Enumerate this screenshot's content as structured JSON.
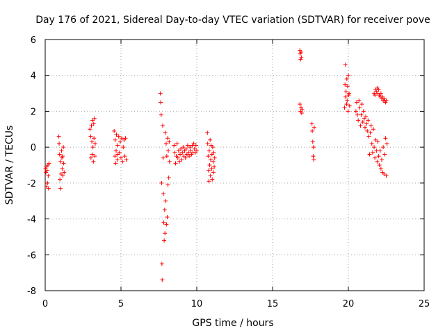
{
  "chart_data": {
    "type": "scatter",
    "title": "Day 176 of 2021, Sidereal Day-to-day VTEC variation (SDTVAR) for receiver pove",
    "xlabel": "GPS time / hours",
    "ylabel": "SDTVAR / TECUs",
    "xlim": [
      0,
      25
    ],
    "ylim": [
      -8,
      6
    ],
    "xticks": [
      0,
      5,
      10,
      15,
      20,
      25
    ],
    "yticks": [
      -8,
      -6,
      -4,
      -2,
      0,
      2,
      4,
      6
    ],
    "xtick_labels": [
      "0",
      "5",
      "10",
      "15",
      "20",
      "25"
    ],
    "ytick_labels": [
      "-8",
      "-6",
      "-4",
      "-2",
      "0",
      "2",
      "4",
      "6"
    ],
    "grid": true,
    "marker": "plus",
    "color": "#ff0000",
    "series": [
      {
        "name": "SDTVAR",
        "points": [
          [
            0.02,
            -1.2
          ],
          [
            0.05,
            -1.4
          ],
          [
            0.08,
            -1.1
          ],
          [
            0.1,
            -2.2
          ],
          [
            0.12,
            -1.3
          ],
          [
            0.15,
            -2.0
          ],
          [
            0.18,
            -1.0
          ],
          [
            0.2,
            -1.6
          ],
          [
            0.22,
            -2.3
          ],
          [
            0.25,
            -0.9
          ],
          [
            0.9,
            0.6
          ],
          [
            0.92,
            0.2
          ],
          [
            0.95,
            -0.4
          ],
          [
            0.97,
            -1.8
          ],
          [
            1.0,
            -2.3
          ],
          [
            1.02,
            -0.8
          ],
          [
            1.05,
            -1.5
          ],
          [
            1.08,
            -0.2
          ],
          [
            1.1,
            -0.6
          ],
          [
            1.12,
            -1.2
          ],
          [
            1.15,
            -0.5
          ],
          [
            1.17,
            -1.6
          ],
          [
            1.2,
            0.0
          ],
          [
            1.22,
            -0.9
          ],
          [
            1.25,
            -1.4
          ],
          [
            2.95,
            1.0
          ],
          [
            3.0,
            0.6
          ],
          [
            3.02,
            -0.6
          ],
          [
            3.05,
            1.2
          ],
          [
            3.08,
            0.3
          ],
          [
            3.1,
            -0.4
          ],
          [
            3.12,
            1.5
          ],
          [
            3.15,
            0.0
          ],
          [
            3.18,
            -0.8
          ],
          [
            3.2,
            1.3
          ],
          [
            3.22,
            0.5
          ],
          [
            3.25,
            1.6
          ],
          [
            3.28,
            -0.5
          ],
          [
            3.3,
            0.2
          ],
          [
            4.55,
            0.9
          ],
          [
            4.6,
            -0.5
          ],
          [
            4.62,
            0.4
          ],
          [
            4.65,
            -0.9
          ],
          [
            4.68,
            -0.2
          ],
          [
            4.7,
            0.7
          ],
          [
            4.75,
            -0.7
          ],
          [
            4.78,
            0.1
          ],
          [
            4.8,
            -0.4
          ],
          [
            4.85,
            0.6
          ],
          [
            4.9,
            -0.3
          ],
          [
            4.95,
            0.3
          ],
          [
            5.0,
            -0.6
          ],
          [
            5.05,
            0.5
          ],
          [
            5.1,
            -0.8
          ],
          [
            5.15,
            0.0
          ],
          [
            5.2,
            0.4
          ],
          [
            5.25,
            -0.5
          ],
          [
            5.3,
            0.5
          ],
          [
            5.35,
            -0.7
          ],
          [
            7.6,
            3.0
          ],
          [
            7.62,
            2.5
          ],
          [
            7.65,
            1.8
          ],
          [
            7.68,
            -2.0
          ],
          [
            7.7,
            -6.5
          ],
          [
            7.72,
            -7.4
          ],
          [
            7.75,
            1.2
          ],
          [
            7.78,
            -0.6
          ],
          [
            7.8,
            -2.6
          ],
          [
            7.82,
            -4.2
          ],
          [
            7.85,
            -5.2
          ],
          [
            7.88,
            -3.5
          ],
          [
            7.9,
            -4.8
          ],
          [
            7.92,
            0.8
          ],
          [
            7.95,
            -3.0
          ],
          [
            7.98,
            0.2
          ],
          [
            8.0,
            -4.3
          ],
          [
            8.02,
            -0.5
          ],
          [
            8.05,
            -3.9
          ],
          [
            8.08,
            0.5
          ],
          [
            8.1,
            -2.1
          ],
          [
            8.12,
            -0.2
          ],
          [
            8.15,
            -1.7
          ],
          [
            8.18,
            0.3
          ],
          [
            8.2,
            -0.8
          ],
          [
            8.5,
            0.1
          ],
          [
            8.55,
            -0.3
          ],
          [
            8.6,
            -0.9
          ],
          [
            8.65,
            -0.5
          ],
          [
            8.7,
            0.2
          ],
          [
            8.75,
            -0.6
          ],
          [
            8.8,
            -0.2
          ],
          [
            8.85,
            -0.8
          ],
          [
            8.9,
            -0.4
          ],
          [
            8.95,
            -0.1
          ],
          [
            9.0,
            -0.7
          ],
          [
            9.05,
            -0.3
          ],
          [
            9.1,
            0.0
          ],
          [
            9.15,
            -0.5
          ],
          [
            9.2,
            -0.2
          ],
          [
            9.25,
            -0.6
          ],
          [
            9.3,
            -0.1
          ],
          [
            9.35,
            -0.4
          ],
          [
            9.4,
            0.1
          ],
          [
            9.45,
            -0.3
          ],
          [
            9.5,
            -0.5
          ],
          [
            9.55,
            0.0
          ],
          [
            9.6,
            -0.2
          ],
          [
            9.65,
            -0.4
          ],
          [
            9.7,
            0.1
          ],
          [
            9.75,
            -0.3
          ],
          [
            9.8,
            0.2
          ],
          [
            9.85,
            -0.1
          ],
          [
            9.9,
            -0.3
          ],
          [
            9.95,
            0.1
          ],
          [
            10.0,
            -0.2
          ],
          [
            10.7,
            0.8
          ],
          [
            10.72,
            0.2
          ],
          [
            10.75,
            -0.5
          ],
          [
            10.78,
            -1.3
          ],
          [
            10.8,
            -1.9
          ],
          [
            10.82,
            -0.2
          ],
          [
            10.85,
            -1.0
          ],
          [
            10.88,
            0.4
          ],
          [
            10.9,
            -1.6
          ],
          [
            10.92,
            -0.7
          ],
          [
            10.95,
            0.1
          ],
          [
            10.98,
            -1.2
          ],
          [
            11.0,
            -0.4
          ],
          [
            11.02,
            -1.8
          ],
          [
            11.05,
            0.0
          ],
          [
            11.08,
            -0.8
          ],
          [
            11.1,
            -1.4
          ],
          [
            11.12,
            -0.3
          ],
          [
            11.15,
            -1.1
          ],
          [
            11.18,
            -0.6
          ],
          [
            16.8,
            5.4
          ],
          [
            16.82,
            5.2
          ],
          [
            16.85,
            4.9
          ],
          [
            16.88,
            5.3
          ],
          [
            16.9,
            5.0
          ],
          [
            16.8,
            2.4
          ],
          [
            16.85,
            2.0
          ],
          [
            16.88,
            2.2
          ],
          [
            16.92,
            1.9
          ],
          [
            16.95,
            2.1
          ],
          [
            17.6,
            1.3
          ],
          [
            17.62,
            0.9
          ],
          [
            17.65,
            0.3
          ],
          [
            17.68,
            -0.5
          ],
          [
            17.7,
            0.0
          ],
          [
            17.72,
            -0.7
          ],
          [
            17.75,
            1.1
          ],
          [
            19.75,
            2.2
          ],
          [
            19.78,
            3.5
          ],
          [
            19.8,
            4.6
          ],
          [
            19.82,
            2.8
          ],
          [
            19.85,
            3.1
          ],
          [
            19.88,
            2.4
          ],
          [
            19.9,
            3.8
          ],
          [
            19.92,
            2.6
          ],
          [
            19.95,
            3.4
          ],
          [
            19.98,
            2.0
          ],
          [
            20.0,
            4.0
          ],
          [
            20.02,
            2.9
          ],
          [
            20.05,
            3.0
          ],
          [
            20.08,
            2.3
          ],
          [
            20.5,
            2.0
          ],
          [
            20.55,
            2.5
          ],
          [
            20.6,
            1.8
          ],
          [
            20.65,
            1.5
          ],
          [
            20.7,
            2.6
          ],
          [
            20.75,
            2.2
          ],
          [
            20.8,
            1.2
          ],
          [
            20.85,
            1.8
          ],
          [
            20.9,
            2.4
          ],
          [
            20.95,
            1.4
          ],
          [
            21.0,
            2.0
          ],
          [
            21.05,
            1.6
          ],
          [
            21.1,
            1.1
          ],
          [
            21.15,
            1.7
          ],
          [
            21.2,
            1.3
          ],
          [
            21.25,
            0.9
          ],
          [
            21.3,
            1.5
          ],
          [
            21.35,
            0.6
          ],
          [
            21.4,
            -0.4
          ],
          [
            21.45,
            0.8
          ],
          [
            21.5,
            1.2
          ],
          [
            21.55,
            0.2
          ],
          [
            21.6,
            -0.3
          ],
          [
            21.65,
            1.0
          ],
          [
            21.7,
            0.0
          ],
          [
            21.75,
            -0.6
          ],
          [
            21.8,
            0.4
          ],
          [
            21.85,
            -0.2
          ],
          [
            21.9,
            -0.8
          ],
          [
            21.95,
            0.3
          ],
          [
            22.0,
            -0.5
          ],
          [
            22.05,
            -1.0
          ],
          [
            22.1,
            -0.2
          ],
          [
            22.15,
            -1.2
          ],
          [
            22.2,
            -0.7
          ],
          [
            22.25,
            -1.4
          ],
          [
            22.3,
            0.0
          ],
          [
            22.35,
            -1.5
          ],
          [
            22.4,
            -0.4
          ],
          [
            22.45,
            0.5
          ],
          [
            22.5,
            -1.6
          ],
          [
            22.55,
            0.2
          ],
          [
            21.7,
            3.0
          ],
          [
            21.75,
            2.9
          ],
          [
            21.8,
            3.2
          ],
          [
            21.85,
            3.1
          ],
          [
            21.9,
            3.3
          ],
          [
            21.95,
            3.0
          ],
          [
            22.0,
            3.2
          ],
          [
            22.05,
            2.9
          ],
          [
            22.1,
            2.8
          ],
          [
            22.15,
            3.0
          ],
          [
            22.2,
            2.7
          ],
          [
            22.25,
            2.8
          ],
          [
            22.3,
            2.6
          ],
          [
            22.35,
            2.7
          ],
          [
            22.4,
            2.6
          ],
          [
            22.45,
            2.5
          ],
          [
            22.5,
            2.6
          ]
        ]
      }
    ]
  }
}
